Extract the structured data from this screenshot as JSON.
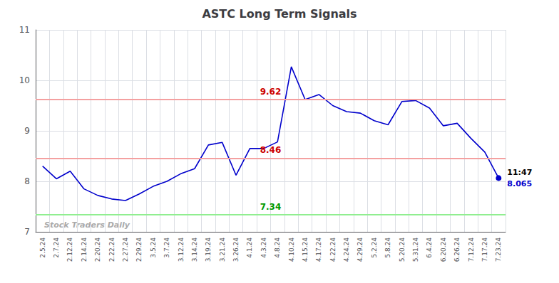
{
  "chart_data": {
    "type": "line",
    "title": "ASTC Long Term Signals",
    "categories": [
      "2.5.24",
      "2.7.24",
      "2.12.24",
      "2.14.24",
      "2.20.24",
      "2.22.24",
      "2.27.24",
      "2.29.24",
      "3.5.24",
      "3.7.24",
      "3.12.24",
      "3.14.24",
      "3.19.24",
      "3.21.24",
      "3.26.24",
      "4.1.24",
      "4.3.24",
      "4.8.24",
      "4.10.24",
      "4.15.24",
      "4.17.24",
      "4.22.24",
      "4.24.24",
      "4.29.24",
      "5.2.24",
      "5.8.24",
      "5.20.24",
      "5.31.24",
      "6.4.24",
      "6.20.24",
      "6.26.24",
      "7.12.24",
      "7.17.24",
      "7.23.24"
    ],
    "values": [
      8.3,
      8.05,
      8.2,
      7.85,
      7.72,
      7.65,
      7.62,
      7.75,
      7.9,
      8.0,
      8.15,
      8.25,
      8.72,
      8.77,
      8.12,
      8.65,
      8.65,
      8.78,
      10.27,
      9.62,
      9.72,
      9.5,
      9.38,
      9.35,
      9.2,
      9.12,
      9.58,
      9.6,
      9.45,
      9.1,
      9.15,
      8.85,
      8.58,
      8.065
    ],
    "color": "#0000cc",
    "ylim": [
      7,
      11
    ],
    "yticks": [
      7,
      8,
      9,
      10,
      11
    ],
    "grid": true,
    "hlines": [
      {
        "value": 9.62,
        "label": "9.62",
        "color": "#f4a0a0",
        "label_color": "#cc0000"
      },
      {
        "value": 8.46,
        "label": "8.46",
        "color": "#f4a0a0",
        "label_color": "#cc0000"
      },
      {
        "value": 7.34,
        "label": "7.34",
        "color": "#90ee90",
        "label_color": "#009900"
      }
    ],
    "last_point": {
      "time": "11:47",
      "value_label": "8.065",
      "time_color": "#000000"
    },
    "watermark": {
      "text": "Stock Traders Daily",
      "color": "#aaaaaa"
    }
  }
}
